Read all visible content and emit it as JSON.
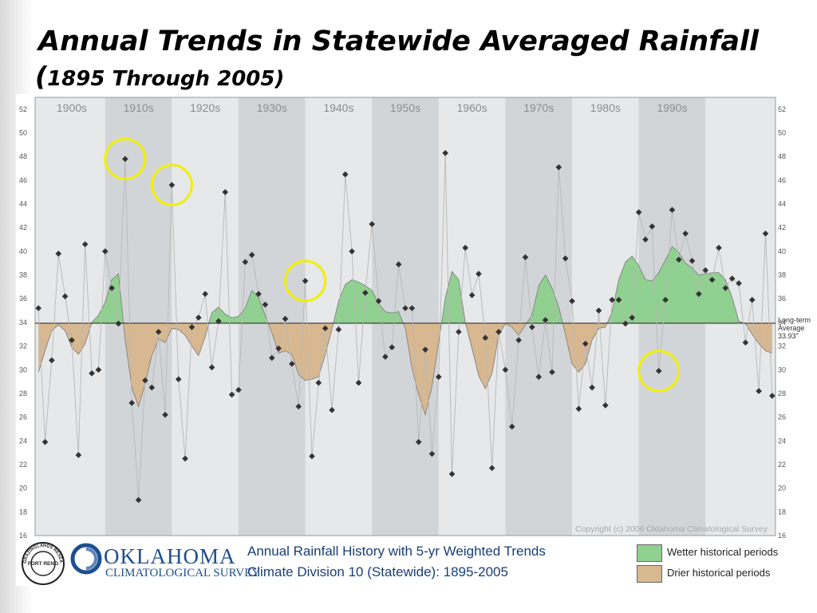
{
  "slide": {
    "title": "Annual Trends in Statewide Averaged Rainfall",
    "subtitle_open": "(",
    "subtitle": "1895 Through 2005)"
  },
  "chart_data": {
    "type": "line",
    "title": "Annual Rainfall History with 5-yr Weighted Trends",
    "subtitle": "Climate Division 10 (Statewide): 1895-2005",
    "xlabel": "",
    "ylabel": "",
    "xlim": [
      1894.5,
      2005.5
    ],
    "ylim": [
      16,
      53
    ],
    "yticks": [
      16,
      18,
      20,
      22,
      24,
      26,
      28,
      30,
      32,
      34,
      36,
      38,
      40,
      42,
      44,
      46,
      48,
      50,
      52
    ],
    "decades": [
      "1900s",
      "1910s",
      "1920s",
      "1930s",
      "1940s",
      "1950s",
      "1960s",
      "1970s",
      "1980s",
      "1990s"
    ],
    "long_term_average": {
      "label_line1": "Long-term",
      "label_line2": "Average",
      "value": 33.93,
      "value_label": "33.93\""
    },
    "copyright": "Copyright (c) 2006 Oklahoma Climatological Survey",
    "series": [
      {
        "name": "Annual rainfall",
        "x": [
          1895,
          1896,
          1897,
          1898,
          1899,
          1900,
          1901,
          1902,
          1903,
          1904,
          1905,
          1906,
          1907,
          1908,
          1909,
          1910,
          1911,
          1912,
          1913,
          1914,
          1915,
          1916,
          1917,
          1918,
          1919,
          1920,
          1921,
          1922,
          1923,
          1924,
          1925,
          1926,
          1927,
          1928,
          1929,
          1930,
          1931,
          1932,
          1933,
          1934,
          1935,
          1936,
          1937,
          1938,
          1939,
          1940,
          1941,
          1942,
          1943,
          1944,
          1945,
          1946,
          1947,
          1948,
          1949,
          1950,
          1951,
          1952,
          1953,
          1954,
          1955,
          1956,
          1957,
          1958,
          1959,
          1960,
          1961,
          1962,
          1963,
          1964,
          1965,
          1966,
          1967,
          1968,
          1969,
          1970,
          1971,
          1972,
          1973,
          1974,
          1975,
          1976,
          1977,
          1978,
          1979,
          1980,
          1981,
          1982,
          1983,
          1984,
          1985,
          1986,
          1987,
          1988,
          1989,
          1990,
          1991,
          1992,
          1993,
          1994,
          1995,
          1996,
          1997,
          1998,
          1999,
          2000,
          2001,
          2002,
          2003,
          2004,
          2005
        ],
        "y": [
          35.2,
          23.9,
          30.8,
          39.8,
          36.2,
          32.5,
          22.8,
          40.6,
          29.7,
          30.0,
          40.0,
          36.9,
          33.9,
          47.8,
          27.2,
          19.0,
          29.1,
          28.5,
          33.2,
          26.2,
          45.6,
          29.2,
          22.5,
          33.6,
          34.4,
          36.4,
          30.2,
          34.1,
          45.0,
          27.9,
          28.3,
          39.1,
          39.7,
          36.4,
          35.5,
          31.0,
          31.8,
          34.3,
          30.5,
          26.9,
          37.5,
          22.7,
          28.9,
          33.5,
          26.6,
          33.4,
          46.5,
          40.0,
          28.9,
          36.5,
          42.3,
          35.8,
          31.1,
          31.9,
          38.9,
          35.2,
          35.2,
          23.9,
          31.7,
          22.9,
          29.4,
          48.3,
          21.2,
          33.2,
          40.3,
          36.3,
          38.1,
          32.7,
          21.7,
          33.2,
          30.0,
          25.2,
          32.5,
          39.5,
          33.6,
          29.4,
          34.2,
          29.8,
          47.1,
          39.4,
          35.8,
          26.7,
          32.2,
          28.5,
          35.0,
          27.0,
          35.9,
          35.9,
          33.9,
          34.4,
          43.3,
          41.0,
          42.1,
          29.9,
          35.9,
          43.5,
          39.3,
          41.5,
          39.2,
          36.4,
          38.4,
          37.6,
          40.3,
          36.9,
          37.7,
          37.3,
          32.3,
          35.9,
          28.2,
          41.5,
          27.8
        ]
      },
      {
        "name": "5-yr weighted trend",
        "x": [
          1895,
          1896,
          1897,
          1898,
          1899,
          1900,
          1901,
          1902,
          1903,
          1904,
          1905,
          1906,
          1907,
          1908,
          1909,
          1910,
          1911,
          1912,
          1913,
          1914,
          1915,
          1916,
          1917,
          1918,
          1919,
          1920,
          1921,
          1922,
          1923,
          1924,
          1925,
          1926,
          1927,
          1928,
          1929,
          1930,
          1931,
          1932,
          1933,
          1934,
          1935,
          1936,
          1937,
          1938,
          1939,
          1940,
          1941,
          1942,
          1943,
          1944,
          1945,
          1946,
          1947,
          1948,
          1949,
          1950,
          1951,
          1952,
          1953,
          1954,
          1955,
          1956,
          1957,
          1958,
          1959,
          1960,
          1961,
          1962,
          1963,
          1964,
          1965,
          1966,
          1967,
          1968,
          1969,
          1970,
          1971,
          1972,
          1973,
          1974,
          1975,
          1976,
          1977,
          1978,
          1979,
          1980,
          1981,
          1982,
          1983,
          1984,
          1985,
          1986,
          1987,
          1988,
          1989,
          1990,
          1991,
          1992,
          1993,
          1994,
          1995,
          1996,
          1997,
          1998,
          1999,
          2000,
          2001,
          2002,
          2003,
          2004,
          2005
        ],
        "y": [
          29.8,
          31.6,
          33.3,
          33.8,
          33.3,
          31.9,
          31.3,
          32.2,
          34.0,
          34.6,
          35.7,
          37.6,
          38.1,
          32.5,
          28.5,
          26.9,
          28.8,
          31.2,
          32.6,
          32.3,
          33.5,
          33.4,
          32.9,
          32.0,
          31.2,
          32.8,
          34.8,
          35.3,
          34.7,
          34.4,
          34.5,
          35.2,
          36.7,
          36.1,
          34.6,
          33.1,
          31.4,
          31.6,
          31.3,
          29.6,
          29.1,
          29.2,
          29.4,
          31.3,
          33.4,
          35.8,
          37.2,
          37.6,
          37.4,
          37.1,
          36.7,
          35.6,
          34.9,
          34.8,
          34.9,
          33.5,
          30.1,
          27.9,
          26.2,
          28.6,
          32.3,
          36.1,
          38.3,
          37.6,
          34.0,
          31.8,
          29.5,
          28.4,
          29.7,
          32.9,
          33.9,
          33.6,
          32.9,
          33.8,
          34.6,
          37.1,
          38.0,
          36.9,
          35.3,
          33.0,
          30.5,
          29.8,
          30.5,
          32.5,
          33.5,
          33.6,
          34.9,
          37.6,
          39.1,
          39.6,
          38.8,
          37.6,
          37.5,
          38.2,
          39.3,
          40.4,
          39.9,
          39.0,
          38.6,
          38.0,
          38.1,
          38.2,
          38.2,
          37.6,
          36.1,
          34.1,
          33.9,
          33.0,
          32.2,
          31.6,
          31.4
        ]
      }
    ]
  },
  "footer": {
    "seal_text": "GRAZINGLANDS RESEARCH LAB",
    "seal_center": "FORT RENO",
    "org_name": "OKLAHOMA",
    "org_sub": "CLIMATOLOGICAL SURVEY",
    "chart_title": "Annual Rainfall History with 5-yr Weighted Trends",
    "chart_subtitle": "Climate Division 10 (Statewide): 1895-2005",
    "legend": [
      {
        "label": "Wetter historical periods",
        "color": "#90d090"
      },
      {
        "label": "Drier historical periods",
        "color": "#d8b890"
      }
    ]
  },
  "colors": {
    "wet": "#90d090",
    "dry": "#d8b890",
    "decade_dark": "#d2d5d8",
    "decade_light": "#e6e8ea",
    "highlight": "#f0f000"
  },
  "highlighted_years": [
    1908,
    1915,
    1935,
    1988
  ]
}
